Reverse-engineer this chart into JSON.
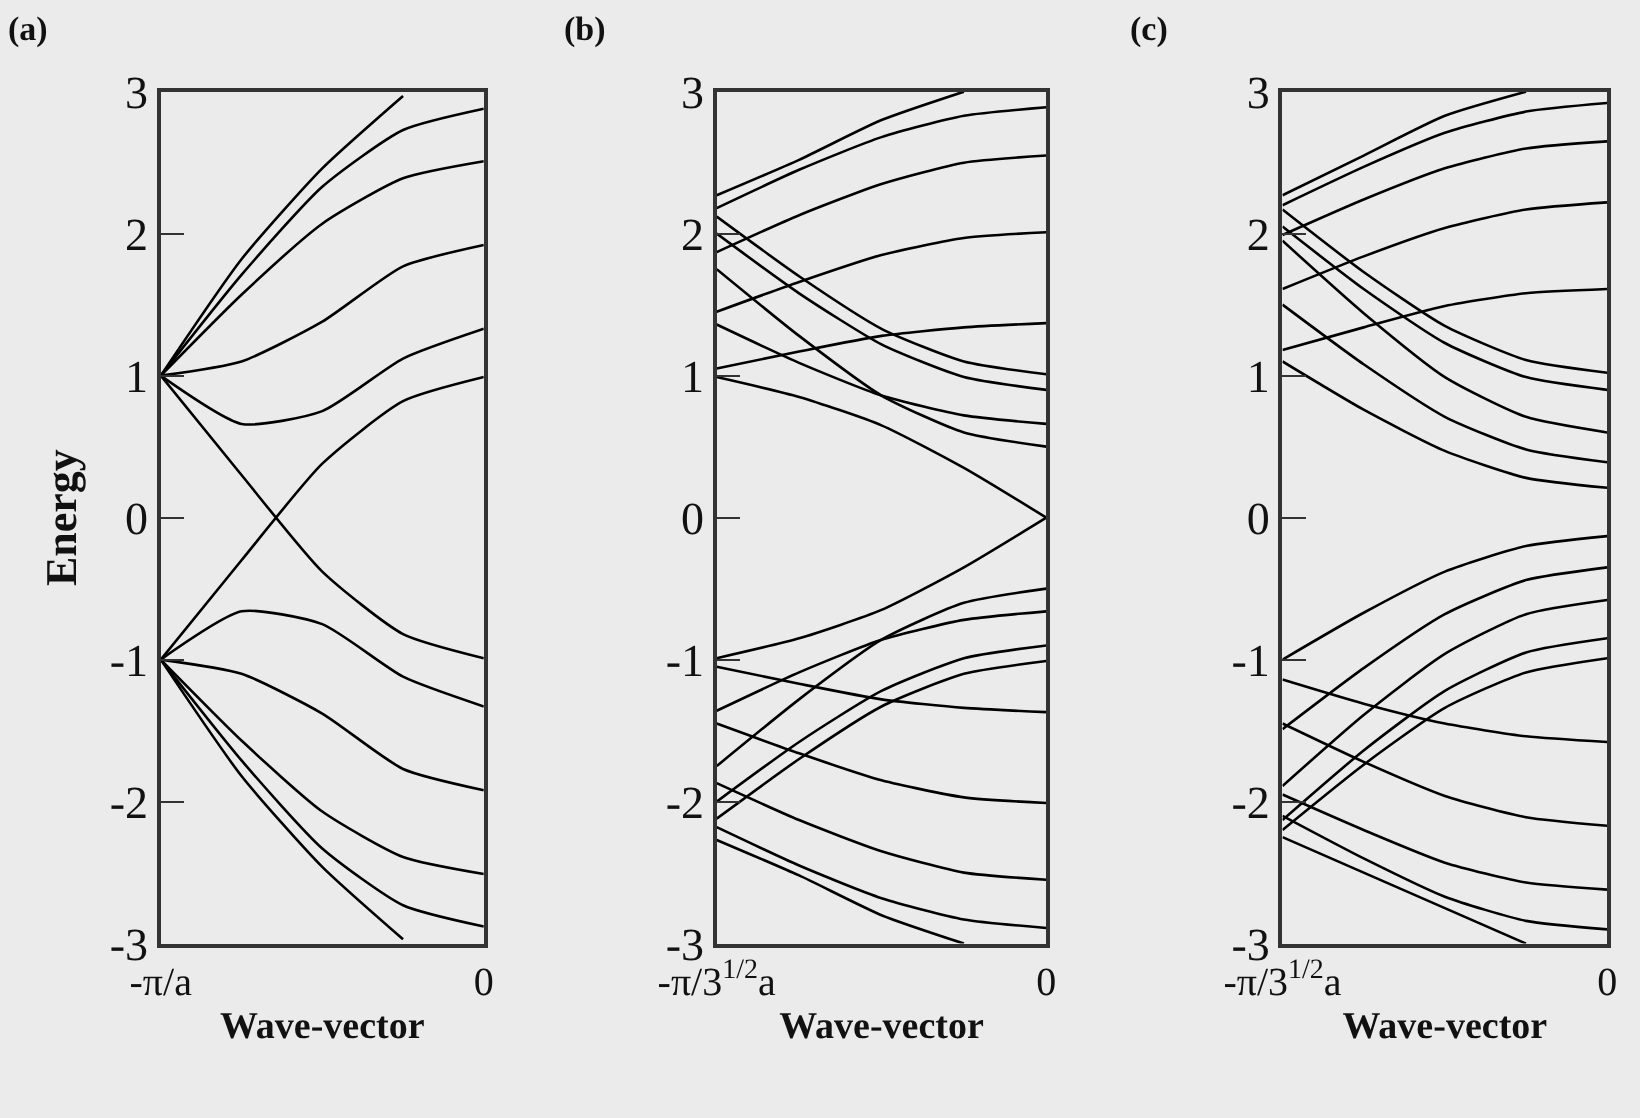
{
  "chart_data": [
    {
      "type": "line",
      "title": "(a)",
      "xlabel": "Wave-vector",
      "ylabel": "Energy",
      "categories": [
        "-π/a",
        null,
        null,
        null,
        "0"
      ],
      "ylim": [
        -3,
        3
      ],
      "yticks": [
        -3,
        -2,
        -1,
        0,
        1,
        2,
        3
      ],
      "grid": false,
      "series": [
        {
          "color": "#000000",
          "values": [
            1.0,
            1.82,
            2.46,
            2.97,
            null
          ]
        },
        {
          "color": "#000000",
          "values": [
            1.0,
            1.71,
            2.33,
            2.73,
            2.88
          ]
        },
        {
          "color": "#000000",
          "values": [
            1.0,
            1.57,
            2.07,
            2.39,
            2.51
          ]
        },
        {
          "color": "#000000",
          "values": [
            1.0,
            1.1,
            1.38,
            1.77,
            1.92
          ]
        },
        {
          "color": "#000000",
          "values": [
            1.0,
            0.66,
            0.75,
            1.12,
            1.33
          ]
        },
        {
          "color": "#000000",
          "values": [
            1.0,
            0.3,
            -0.38,
            -0.82,
            -0.99
          ]
        },
        {
          "color": "#000000",
          "values": [
            -1.0,
            -0.3,
            0.38,
            0.82,
            0.99
          ]
        },
        {
          "color": "#000000",
          "values": [
            -1.0,
            -0.66,
            -0.75,
            -1.12,
            -1.33
          ]
        },
        {
          "color": "#000000",
          "values": [
            -1.0,
            -1.1,
            -1.38,
            -1.77,
            -1.92
          ]
        },
        {
          "color": "#000000",
          "values": [
            -1.0,
            -1.57,
            -2.07,
            -2.39,
            -2.51
          ]
        },
        {
          "color": "#000000",
          "values": [
            -1.0,
            -1.71,
            -2.33,
            -2.73,
            -2.88
          ]
        },
        {
          "color": "#000000",
          "values": [
            -1.0,
            -1.82,
            -2.46,
            -2.97,
            null
          ]
        }
      ]
    },
    {
      "type": "line",
      "title": "(b)",
      "xlabel": "Wave-vector",
      "categories": [
        "-π/3$^{1/2}$a",
        null,
        null,
        null,
        "0"
      ],
      "ylim": [
        -3,
        3
      ],
      "yticks": [
        -3,
        -2,
        -1,
        0,
        1,
        2,
        3
      ],
      "grid": false,
      "series": [
        {
          "color": "#000000",
          "values": [
            2.27,
            2.52,
            2.8,
            3.0,
            null
          ]
        },
        {
          "color": "#000000",
          "values": [
            2.18,
            2.45,
            2.68,
            2.83,
            2.89
          ]
        },
        {
          "color": "#000000",
          "values": [
            1.87,
            2.13,
            2.35,
            2.5,
            2.55
          ]
        },
        {
          "color": "#000000",
          "values": [
            1.45,
            1.66,
            1.85,
            1.97,
            2.01
          ]
        },
        {
          "color": "#000000",
          "values": [
            1.05,
            1.17,
            1.28,
            1.34,
            1.37
          ]
        },
        {
          "color": "#000000",
          "values": [
            2.12,
            1.7,
            1.33,
            1.1,
            1.01
          ]
        },
        {
          "color": "#000000",
          "values": [
            2.0,
            1.58,
            1.22,
            0.99,
            0.9
          ]
        },
        {
          "color": "#000000",
          "values": [
            1.75,
            1.28,
            0.86,
            0.6,
            0.5
          ]
        },
        {
          "color": "#000000",
          "values": [
            1.36,
            1.09,
            0.86,
            0.72,
            0.66
          ]
        },
        {
          "color": "#000000",
          "values": [
            0.99,
            0.85,
            0.65,
            0.35,
            0.0
          ]
        },
        {
          "color": "#000000",
          "values": [
            -0.99,
            -0.85,
            -0.65,
            -0.35,
            0.0
          ]
        },
        {
          "color": "#000000",
          "values": [
            -1.36,
            -1.09,
            -0.86,
            -0.72,
            -0.66
          ]
        },
        {
          "color": "#000000",
          "values": [
            -1.75,
            -1.28,
            -0.86,
            -0.6,
            -0.5
          ]
        },
        {
          "color": "#000000",
          "values": [
            -2.0,
            -1.58,
            -1.22,
            -0.99,
            -0.9
          ]
        },
        {
          "color": "#000000",
          "values": [
            -2.12,
            -1.7,
            -1.33,
            -1.1,
            -1.01
          ]
        },
        {
          "color": "#000000",
          "values": [
            -1.05,
            -1.17,
            -1.28,
            -1.34,
            -1.37
          ]
        },
        {
          "color": "#000000",
          "values": [
            -1.45,
            -1.66,
            -1.85,
            -1.97,
            -2.01
          ]
        },
        {
          "color": "#000000",
          "values": [
            -1.87,
            -2.13,
            -2.35,
            -2.5,
            -2.55
          ]
        },
        {
          "color": "#000000",
          "values": [
            -2.18,
            -2.45,
            -2.68,
            -2.83,
            -2.89
          ]
        },
        {
          "color": "#000000",
          "values": [
            -2.27,
            -2.52,
            -2.8,
            -3.0,
            null
          ]
        }
      ]
    },
    {
      "type": "line",
      "title": "(c)",
      "xlabel": "Wave-vector",
      "categories": [
        "-π/3$^{1/2}$a",
        null,
        null,
        null,
        "0"
      ],
      "ylim": [
        -3,
        3
      ],
      "yticks": [
        -3,
        -2,
        -1,
        0,
        1,
        2,
        3
      ],
      "grid": false,
      "series": [
        {
          "color": "#000000",
          "values": [
            2.27,
            2.55,
            2.83,
            3.0,
            null
          ]
        },
        {
          "color": "#000000",
          "values": [
            2.2,
            2.47,
            2.71,
            2.86,
            2.92
          ]
        },
        {
          "color": "#000000",
          "values": [
            1.99,
            2.24,
            2.46,
            2.6,
            2.65
          ]
        },
        {
          "color": "#000000",
          "values": [
            1.61,
            1.84,
            2.04,
            2.17,
            2.22
          ]
        },
        {
          "color": "#000000",
          "values": [
            1.18,
            1.34,
            1.49,
            1.58,
            1.61
          ]
        },
        {
          "color": "#000000",
          "values": [
            2.17,
            1.73,
            1.35,
            1.11,
            1.02
          ]
        },
        {
          "color": "#000000",
          "values": [
            2.05,
            1.61,
            1.23,
            0.99,
            0.9
          ]
        },
        {
          "color": "#000000",
          "values": [
            1.95,
            1.44,
            0.99,
            0.71,
            0.6
          ]
        },
        {
          "color": "#000000",
          "values": [
            1.5,
            1.08,
            0.71,
            0.48,
            0.39
          ]
        },
        {
          "color": "#000000",
          "values": [
            1.1,
            0.76,
            0.47,
            0.28,
            0.21
          ]
        },
        {
          "color": "#000000",
          "values": [
            -1.0,
            -0.67,
            -0.38,
            -0.2,
            -0.13
          ]
        },
        {
          "color": "#000000",
          "values": [
            -1.49,
            -1.06,
            -0.68,
            -0.44,
            -0.35
          ]
        },
        {
          "color": "#000000",
          "values": [
            -1.89,
            -1.39,
            -0.96,
            -0.68,
            -0.58
          ]
        },
        {
          "color": "#000000",
          "values": [
            -2.13,
            -1.64,
            -1.22,
            -0.95,
            -0.85
          ]
        },
        {
          "color": "#000000",
          "values": [
            -2.2,
            -1.74,
            -1.34,
            -1.09,
            -0.99
          ]
        },
        {
          "color": "#000000",
          "values": [
            -1.14,
            -1.31,
            -1.45,
            -1.54,
            -1.58
          ]
        },
        {
          "color": "#000000",
          "values": [
            -1.45,
            -1.72,
            -1.96,
            -2.11,
            -2.17
          ]
        },
        {
          "color": "#000000",
          "values": [
            -1.95,
            -2.2,
            -2.43,
            -2.57,
            -2.62
          ]
        },
        {
          "color": "#000000",
          "values": [
            -2.1,
            -2.4,
            -2.67,
            -2.84,
            -2.9
          ]
        },
        {
          "color": "#000000",
          "values": [
            -2.25,
            -2.5,
            -2.75,
            -3.0,
            null
          ]
        }
      ]
    }
  ]
}
